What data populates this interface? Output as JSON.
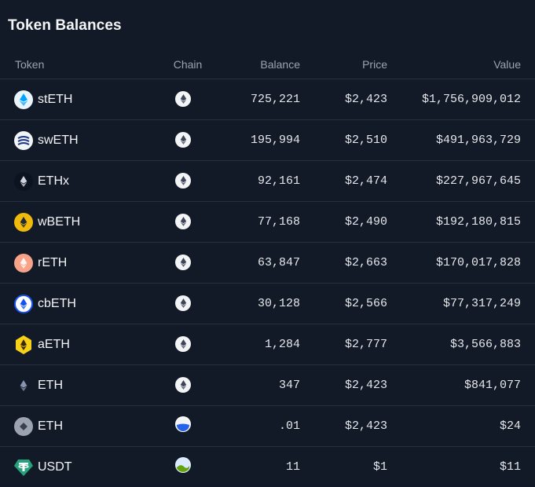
{
  "title": "Token Balances",
  "headers": {
    "token": "Token",
    "chain": "Chain",
    "balance": "Balance",
    "price": "Price",
    "value": "Value"
  },
  "rows": [
    {
      "token": "stETH",
      "icon": "steth-icon",
      "chain_icon": "ethereum-chain-icon",
      "balance": "725,221",
      "price": "$2,423",
      "value": "$1,756,909,012"
    },
    {
      "token": "swETH",
      "icon": "sweth-icon",
      "chain_icon": "ethereum-chain-icon",
      "balance": "195,994",
      "price": "$2,510",
      "value": "$491,963,729"
    },
    {
      "token": "ETHx",
      "icon": "ethx-icon",
      "chain_icon": "ethereum-chain-icon",
      "balance": "92,161",
      "price": "$2,474",
      "value": "$227,967,645"
    },
    {
      "token": "wBETH",
      "icon": "wbeth-icon",
      "chain_icon": "ethereum-chain-icon",
      "balance": "77,168",
      "price": "$2,490",
      "value": "$192,180,815"
    },
    {
      "token": "rETH",
      "icon": "reth-icon",
      "chain_icon": "ethereum-chain-icon",
      "balance": "63,847",
      "price": "$2,663",
      "value": "$170,017,828"
    },
    {
      "token": "cbETH",
      "icon": "cbeth-icon",
      "chain_icon": "ethereum-chain-icon",
      "balance": "30,128",
      "price": "$2,566",
      "value": "$77,317,249"
    },
    {
      "token": "aETH",
      "icon": "aeth-icon",
      "chain_icon": "ethereum-chain-icon",
      "balance": "1,284",
      "price": "$2,777",
      "value": "$3,566,883"
    },
    {
      "token": "ETH",
      "icon": "eth-icon",
      "chain_icon": "ethereum-chain-icon",
      "balance": "347",
      "price": "$2,423",
      "value": "$841,077"
    },
    {
      "token": "ETH",
      "icon": "eth-gray-icon",
      "chain_icon": "l2-chain-icon",
      "balance": ".01",
      "price": "$2,423",
      "value": "$24"
    },
    {
      "token": "USDT",
      "icon": "usdt-icon",
      "chain_icon": "landscape-chain-icon",
      "balance": "11",
      "price": "$1",
      "value": "$11"
    }
  ]
}
